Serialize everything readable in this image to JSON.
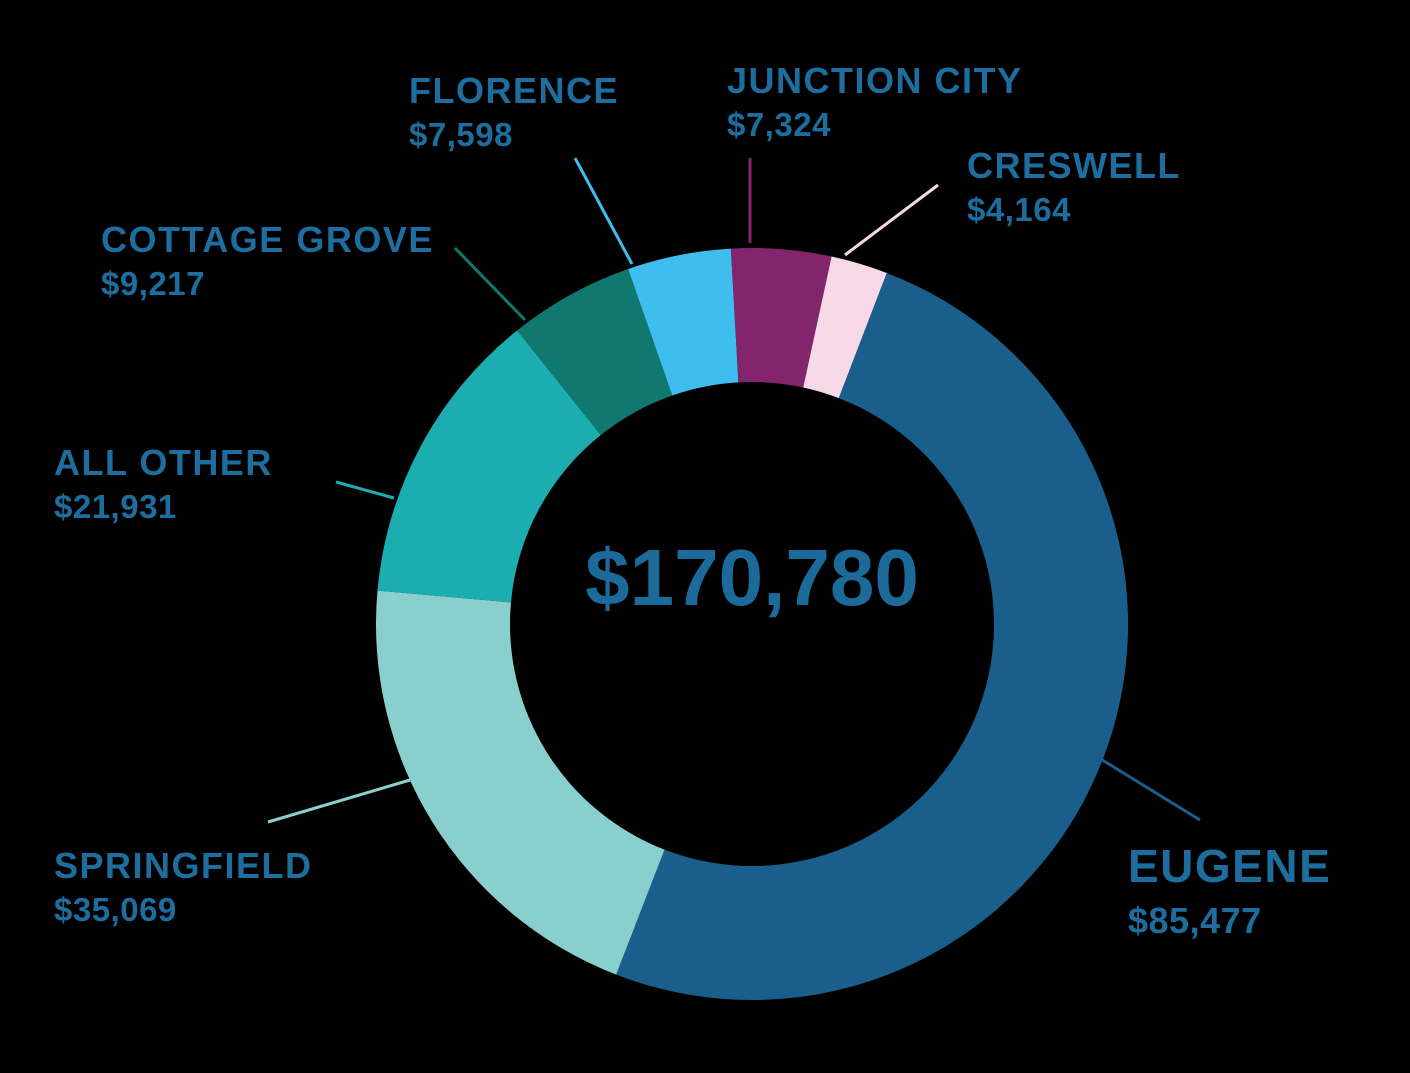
{
  "chart_data": {
    "type": "pie",
    "total_label": "$170,780",
    "slices": [
      {
        "name": "EUGENE",
        "value": 85477,
        "value_label": "$85,477",
        "color": "#1a5e8c"
      },
      {
        "name": "SPRINGFIELD",
        "value": 35069,
        "value_label": "$35,069",
        "color": "#89cfcd"
      },
      {
        "name": "ALL OTHER",
        "value": 21931,
        "value_label": "$21,931",
        "color": "#1cadb0"
      },
      {
        "name": "COTTAGE GROVE",
        "value": 9217,
        "value_label": "$9,217",
        "color": "#11786f"
      },
      {
        "name": "FLORENCE",
        "value": 7598,
        "value_label": "$7,598",
        "color": "#3fbdee"
      },
      {
        "name": "JUNCTION CITY",
        "value": 7324,
        "value_label": "$7,324",
        "color": "#83256d"
      },
      {
        "name": "CRESWELL",
        "value": 4164,
        "value_label": "$4,164",
        "color": "#f7d9e8"
      }
    ]
  }
}
